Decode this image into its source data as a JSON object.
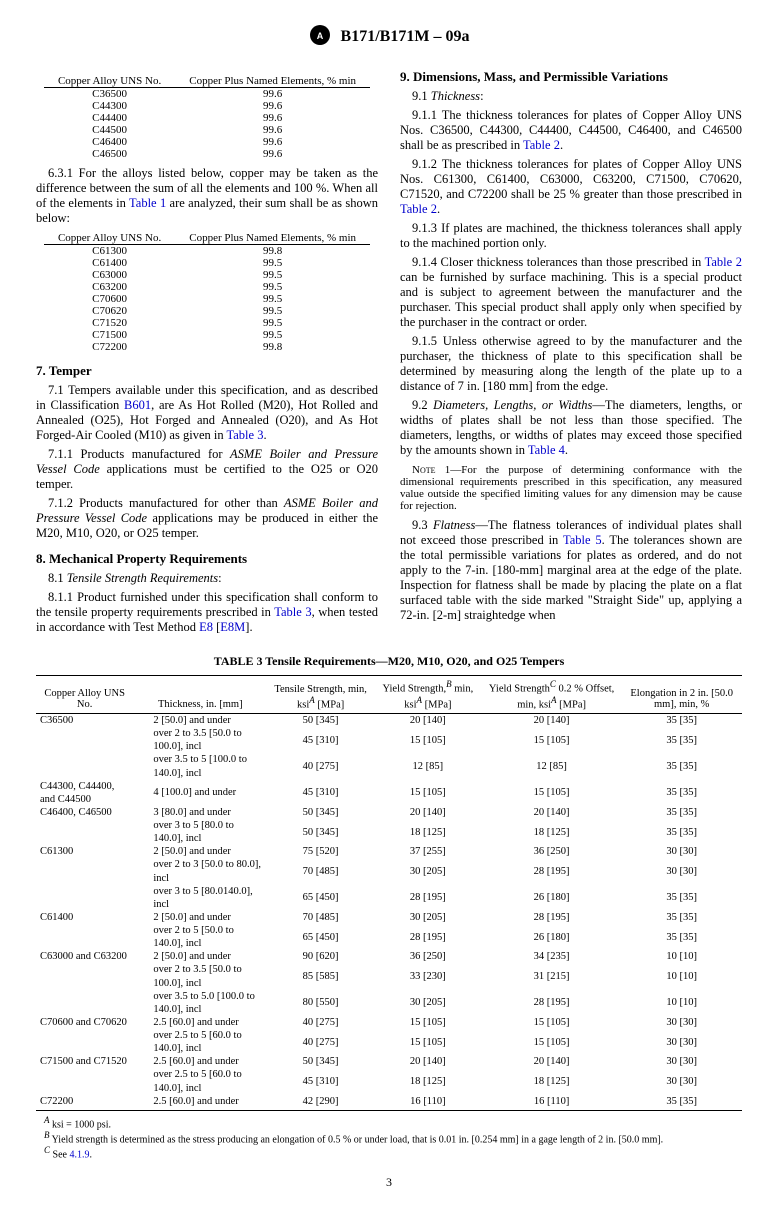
{
  "docHeader": "B171/B171M – 09a",
  "table1": {
    "headers": [
      "Copper Alloy UNS No.",
      "Copper Plus Named Elements, % min"
    ],
    "rows": [
      [
        "C36500",
        "99.6"
      ],
      [
        "C44300",
        "99.6"
      ],
      [
        "C44400",
        "99.6"
      ],
      [
        "C44500",
        "99.6"
      ],
      [
        "C46400",
        "99.6"
      ],
      [
        "C46500",
        "99.6"
      ]
    ]
  },
  "para6_3_1": "6.3.1 For the alloys listed below, copper may be taken as the difference between the sum of all the elements and 100 %. When all of the elements in ",
  "para6_3_1_link": "Table 1",
  "para6_3_1_cont": " are analyzed, their sum shall be as shown below:",
  "table2": {
    "headers": [
      "Copper Alloy UNS No.",
      "Copper Plus Named Elements, % min"
    ],
    "rows": [
      [
        "C61300",
        "99.8"
      ],
      [
        "C61400",
        "99.5"
      ],
      [
        "C63000",
        "99.5"
      ],
      [
        "C63200",
        "99.5"
      ],
      [
        "C70600",
        "99.5"
      ],
      [
        "C70620",
        "99.5"
      ],
      [
        "C71520",
        "99.5"
      ],
      [
        "C71500",
        "99.5"
      ],
      [
        "C72200",
        "99.8"
      ]
    ]
  },
  "sec7": {
    "title": "7. Temper",
    "p7_1a": "7.1 Tempers available under this specification, and as described in Classification ",
    "p7_1_link1": "B601",
    "p7_1b": ", are As Hot Rolled (M20), Hot Rolled and Annealed (O25), Hot Forged and Annealed (O20), and As Hot Forged-Air Cooled (M10) as given in ",
    "p7_1_link2": "Table 3",
    "p7_1c": ".",
    "p7_1_1": "7.1.1 Products manufactured for ",
    "p7_1_1_ital": "ASME Boiler and Pressure Vessel Code",
    "p7_1_1b": " applications must be certified to the O25 or O20 temper.",
    "p7_1_2": "7.1.2 Products manufactured for other than ",
    "p7_1_2_ital": "ASME Boiler and Pressure Vessel Code",
    "p7_1_2b": " applications may be produced in either the M20, M10, O20, or O25 temper."
  },
  "sec8": {
    "title": "8. Mechanical Property Requirements",
    "p8_1": "8.1 ",
    "p8_1_ital": "Tensile Strength Requirements",
    "p8_1_1a": "8.1.1 Product furnished under this specification shall conform to the tensile property requirements prescribed in ",
    "p8_1_1_link1": "Table 3",
    "p8_1_1b": ", when tested in accordance with Test Method ",
    "p8_1_1_link2": "E8",
    "p8_1_1c": " [",
    "p8_1_1_link3": "E8M",
    "p8_1_1d": "]."
  },
  "sec9": {
    "title": "9. Dimensions, Mass, and Permissible Variations",
    "p9_1": "9.1 ",
    "p9_1_ital": "Thickness",
    "p9_1_1a": "9.1.1 The thickness tolerances for plates of Copper Alloy UNS Nos. C36500, C44300, C44400, C44500, C46400, and C46500 shall be as prescribed in ",
    "p9_1_1_link": "Table 2",
    "p9_1_1b": ".",
    "p9_1_2a": "9.1.2 The thickness tolerances for plates of Copper Alloy UNS Nos. C61300, C61400, C63000, C63200, C71500, C70620, C71520, and C72200 shall be 25 % greater than those prescribed in ",
    "p9_1_2_link": "Table 2",
    "p9_1_2b": ".",
    "p9_1_3": "9.1.3 If plates are machined, the thickness tolerances shall apply to the machined portion only.",
    "p9_1_4a": "9.1.4 Closer thickness tolerances than those prescribed in ",
    "p9_1_4_link": "Table 2",
    "p9_1_4b": " can be furnished by surface machining. This is a special product and is subject to agreement between the manufacturer and the purchaser. This special product shall apply only when specified by the purchaser in the contract or order.",
    "p9_1_5": "9.1.5 Unless otherwise agreed to by the manufacturer and the purchaser, the thickness of plate to this specification shall be determined by measuring along the length of the plate up to a distance of 7 in. [180 mm] from the edge.",
    "p9_2a": "9.2 ",
    "p9_2_ital": "Diameters, Lengths, or Widths",
    "p9_2b": "—The diameters, lengths, or widths of plates shall be not less than those specified. The diameters, lengths, or widths of plates may exceed those specified by the amounts shown in ",
    "p9_2_link": "Table 4",
    "p9_2c": ".",
    "note1_pre": "NOTE 1—For the purpose of determining conformance with the dimensional requirements prescribed in this specification, any measured value outside the specified limiting values for any dimension may be cause for rejection.",
    "p9_3a": "9.3 ",
    "p9_3_ital": "Flatness",
    "p9_3b": "—The flatness tolerances of individual plates shall not exceed those prescribed in ",
    "p9_3_link": "Table 5",
    "p9_3c": ". The tolerances shown are the total permissible variations for plates as ordered, and do not apply to the 7-in. [180-mm] marginal area at the edge of the plate. Inspection for flatness shall be made by placing the plate on a flat surfaced table with the side marked \"Straight Side\" up, applying a 72-in. [2-m] straightedge when"
  },
  "table3": {
    "title": "TABLE 3 Tensile Requirements—M20, M10, O20, and O25 Tempers",
    "headers": [
      "Copper Alloy UNS No.",
      "Thickness, in. [mm]",
      "Tensile Strength, min, ksi^A [MPa]",
      "Yield Strength,^B min, ksi^A [MPa]",
      "Yield Strength^C 0.2 % Offset, min, ksi^A [MPa]",
      "Elongation in 2 in. [50.0 mm], min, %"
    ],
    "rows": [
      [
        "C36500",
        "2 [50.0] and under",
        "50 [345]",
        "20 [140]",
        "20 [140]",
        "35 [35]"
      ],
      [
        "",
        "over 2 to 3.5 [50.0 to 100.0], incl",
        "45 [310]",
        "15 [105]",
        "15 [105]",
        "35 [35]"
      ],
      [
        "",
        "over 3.5 to 5 [100.0 to 140.0], incl",
        "40 [275]",
        "12 [85]",
        "12 [85]",
        "35 [35]"
      ],
      [
        "C44300, C44400, and C44500",
        "4 [100.0] and under",
        "45 [310]",
        "15 [105]",
        "15 [105]",
        "35 [35]"
      ],
      [
        "C46400, C46500",
        "3 [80.0] and under",
        "50 [345]",
        "20 [140]",
        "20 [140]",
        "35 [35]"
      ],
      [
        "",
        "over 3 to 5 [80.0 to 140.0], incl",
        "50 [345]",
        "18 [125]",
        "18 [125]",
        "35 [35]"
      ],
      [
        "C61300",
        "2 [50.0] and under",
        "75 [520]",
        "37 [255]",
        "36 [250]",
        "30 [30]"
      ],
      [
        "",
        "over 2 to 3 [50.0 to 80.0], incl",
        "70 [485]",
        "30 [205]",
        "28 [195]",
        "30 [30]"
      ],
      [
        "",
        "over 3 to 5 [80.0140.0], incl",
        "65 [450]",
        "28 [195]",
        "26 [180]",
        "35 [35]"
      ],
      [
        "C61400",
        "2 [50.0] and under",
        "70 [485]",
        "30 [205]",
        "28 [195]",
        "35 [35]"
      ],
      [
        "",
        "over 2 to 5 [50.0 to 140.0], incl",
        "65 [450]",
        "28 [195]",
        "26 [180]",
        "35 [35]"
      ],
      [
        "C63000 and C63200",
        "2 [50.0] and under",
        "90 [620]",
        "36 [250]",
        "34 [235]",
        "10 [10]"
      ],
      [
        "",
        "over 2 to 3.5 [50.0 to 100.0], incl",
        "85 [585]",
        "33 [230]",
        "31 [215]",
        "10 [10]"
      ],
      [
        "",
        "over 3.5 to 5.0 [100.0 to 140.0], incl",
        "80 [550]",
        "30 [205]",
        "28 [195]",
        "10 [10]"
      ],
      [
        "C70600 and C70620",
        "2.5 [60.0] and under",
        "40 [275]",
        "15 [105]",
        "15 [105]",
        "30 [30]"
      ],
      [
        "",
        "over 2.5 to 5 [60.0 to 140.0], incl",
        "40 [275]",
        "15 [105]",
        "15 [105]",
        "30 [30]"
      ],
      [
        "C71500 and C71520",
        "2.5 [60.0] and under",
        "50 [345]",
        "20 [140]",
        "20 [140]",
        "30 [30]"
      ],
      [
        "",
        "over 2.5 to 5 [60.0 to 140.0], incl",
        "45 [310]",
        "18 [125]",
        "18 [125]",
        "30 [30]"
      ],
      [
        "C72200",
        "2.5 [60.0] and under",
        "42 [290]",
        "16 [110]",
        "16 [110]",
        "35 [35]"
      ]
    ],
    "footnotes": [
      "^A ksi = 1000 psi.",
      "^B Yield strength is determined as the stress producing an elongation of 0.5 % or under load, that is 0.01 in. [0.254 mm] in a gage length of 2 in. [50.0 mm].",
      "^C See 4.1.9."
    ]
  },
  "pageNum": "3"
}
